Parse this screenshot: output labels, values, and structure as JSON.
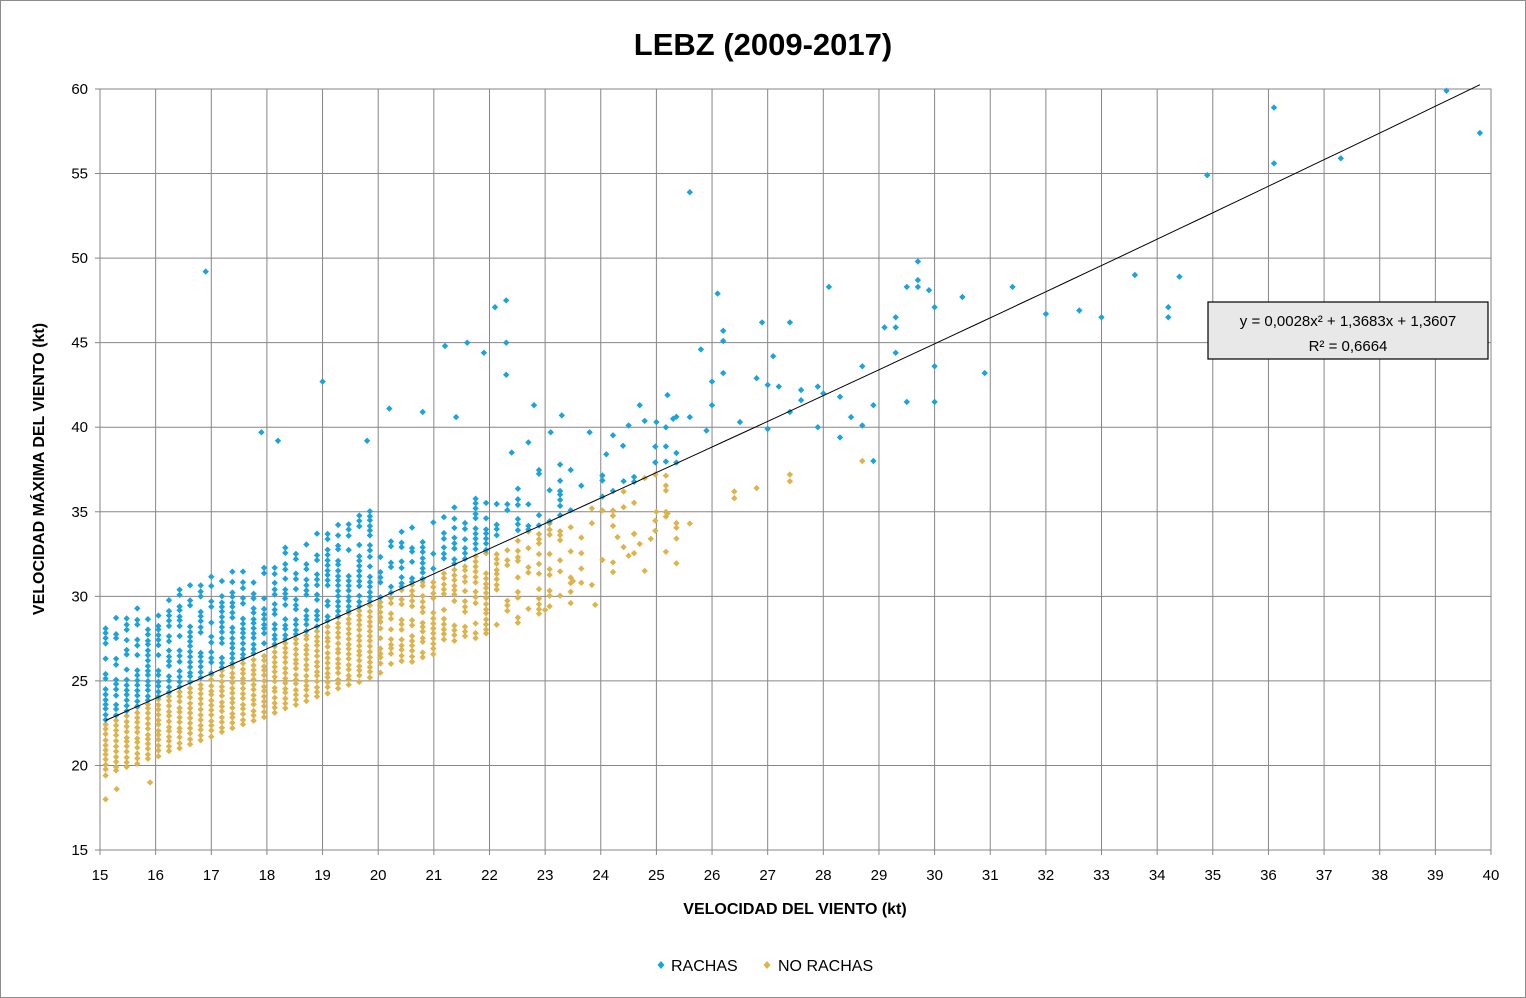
{
  "chart_data": {
    "type": "scatter",
    "title": "LEBZ (2009-2017)",
    "xlabel": "VELOCIDAD DEL VIENTO (kt)",
    "ylabel": "VELOCIDAD MÁXIMA DEL VIENTO (kt)",
    "xlim": [
      15,
      40
    ],
    "ylim": [
      15,
      60
    ],
    "xticks": [
      "15",
      "16",
      "17",
      "18",
      "19",
      "20",
      "21",
      "22",
      "23",
      "24",
      "25",
      "26",
      "27",
      "28",
      "29",
      "30",
      "31",
      "32",
      "33",
      "34",
      "35",
      "36",
      "37",
      "38",
      "39",
      "40"
    ],
    "yticks": [
      "15",
      "20",
      "25",
      "30",
      "35",
      "40",
      "45",
      "50",
      "55",
      "60"
    ],
    "grid": true,
    "legend_position": "bottom",
    "colors": {
      "rachas": "#1aa3dc",
      "no_rachas": "#ddb34a",
      "trendline": "#000000"
    },
    "trendline": {
      "type": "polynomial",
      "coefficients": [
        0.0028,
        1.3683,
        1.3607
      ],
      "x_range": [
        15.1,
        39.8
      ],
      "equation": "y = 0,0028x² + 1,3683x + 1,3607",
      "r_squared": "R² = 0,6664"
    },
    "series": [
      {
        "name": "RACHAS",
        "color": "#1aa3dc",
        "outliers": [
          [
            16.9,
            49.2
          ],
          [
            19.0,
            42.7
          ],
          [
            20.2,
            41.1
          ],
          [
            20.8,
            40.9
          ],
          [
            21.2,
            44.8
          ],
          [
            21.6,
            45.0
          ],
          [
            21.9,
            44.4
          ],
          [
            22.1,
            47.1
          ],
          [
            22.3,
            47.5
          ],
          [
            22.3,
            45.0
          ],
          [
            22.3,
            43.1
          ],
          [
            22.8,
            41.3
          ],
          [
            23.3,
            40.7
          ],
          [
            21.4,
            40.6
          ],
          [
            19.8,
            39.2
          ],
          [
            18.2,
            39.2
          ],
          [
            17.9,
            39.7
          ],
          [
            25.6,
            53.9
          ],
          [
            26.1,
            47.9
          ],
          [
            25.8,
            44.6
          ],
          [
            26.0,
            42.7
          ],
          [
            26.2,
            45.7
          ],
          [
            26.2,
            45.1
          ],
          [
            26.2,
            43.2
          ],
          [
            26.0,
            41.3
          ],
          [
            26.9,
            46.2
          ],
          [
            27.1,
            44.2
          ],
          [
            27.4,
            46.2
          ],
          [
            26.8,
            42.9
          ],
          [
            27.0,
            42.5
          ],
          [
            27.2,
            42.4
          ],
          [
            27.6,
            42.2
          ],
          [
            27.9,
            42.4
          ],
          [
            28.0,
            42.0
          ],
          [
            28.1,
            48.3
          ],
          [
            28.3,
            41.8
          ],
          [
            28.7,
            43.6
          ],
          [
            28.9,
            41.3
          ],
          [
            29.1,
            45.9
          ],
          [
            29.3,
            46.5
          ],
          [
            29.3,
            45.9
          ],
          [
            29.3,
            44.4
          ],
          [
            29.5,
            48.3
          ],
          [
            29.7,
            48.7
          ],
          [
            29.7,
            49.8
          ],
          [
            29.7,
            48.3
          ],
          [
            29.9,
            48.1
          ],
          [
            30.0,
            47.1
          ],
          [
            30.0,
            43.6
          ],
          [
            30.0,
            41.5
          ],
          [
            29.5,
            41.5
          ],
          [
            30.5,
            47.7
          ],
          [
            30.9,
            43.2
          ],
          [
            31.4,
            48.3
          ],
          [
            32.0,
            46.7
          ],
          [
            32.6,
            46.9
          ],
          [
            33.0,
            46.5
          ],
          [
            33.6,
            49.0
          ],
          [
            34.2,
            47.1
          ],
          [
            34.2,
            46.5
          ],
          [
            34.4,
            48.9
          ],
          [
            34.9,
            54.9
          ],
          [
            36.1,
            58.9
          ],
          [
            36.1,
            55.6
          ],
          [
            37.3,
            55.9
          ],
          [
            39.2,
            59.9
          ],
          [
            39.8,
            57.4
          ],
          [
            24.5,
            40.1
          ],
          [
            24.7,
            41.3
          ],
          [
            25.2,
            41.9
          ],
          [
            25.3,
            40.5
          ],
          [
            25.6,
            40.6
          ],
          [
            25.0,
            40.3
          ],
          [
            24.4,
            38.9
          ],
          [
            24.1,
            38.4
          ],
          [
            23.8,
            39.7
          ],
          [
            23.1,
            39.7
          ],
          [
            22.7,
            39.1
          ],
          [
            22.4,
            38.5
          ],
          [
            25.9,
            39.8
          ],
          [
            26.5,
            40.3
          ],
          [
            27.0,
            39.9
          ],
          [
            27.4,
            40.9
          ],
          [
            27.6,
            41.6
          ],
          [
            27.9,
            40.0
          ],
          [
            28.3,
            39.4
          ],
          [
            28.5,
            40.6
          ],
          [
            28.7,
            40.1
          ],
          [
            28.9,
            38.0
          ]
        ]
      },
      {
        "name": "NO RACHAS",
        "color": "#ddb34a",
        "outliers": [
          [
            15.1,
            18.0
          ],
          [
            15.3,
            18.6
          ],
          [
            15.9,
            19.0
          ],
          [
            23.9,
            29.5
          ],
          [
            25.6,
            34.3
          ],
          [
            26.4,
            35.8
          ],
          [
            26.4,
            36.2
          ],
          [
            26.8,
            36.4
          ],
          [
            27.4,
            36.8
          ],
          [
            27.4,
            37.2
          ],
          [
            28.7,
            38.0
          ],
          [
            25.0,
            35.0
          ],
          [
            25.2,
            34.9
          ],
          [
            24.9,
            33.4
          ],
          [
            24.7,
            33.1
          ],
          [
            24.5,
            32.4
          ],
          [
            24.6,
            33.7
          ],
          [
            24.3,
            33.5
          ],
          [
            23.5,
            30.9
          ],
          [
            23.0,
            29.2
          ]
        ]
      }
    ]
  },
  "legend": {
    "items": [
      "RACHAS",
      "NO RACHAS"
    ]
  }
}
